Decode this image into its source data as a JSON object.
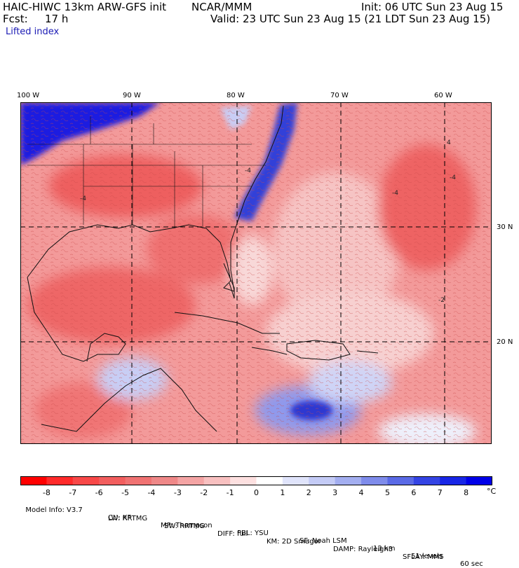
{
  "header": {
    "model": "HAIC-HIWC 13km ARW-GFS init",
    "org": "NCAR/MMM",
    "init": "Init: 06 UTC Sun 23 Aug 15",
    "fcst_label": "Fcst:",
    "fcst_value": "17 h",
    "valid": "Valid: 23 UTC Sun 23 Aug 15 (21 LDT Sun 23 Aug 15)",
    "field": "Lifted index"
  },
  "map": {
    "lon_labels": [
      "100 W",
      "90 W",
      "80 W",
      "70 W",
      "60 W"
    ],
    "lat_labels": [
      "30 N",
      "20 N"
    ],
    "contour_labels": [
      "-4",
      "-4",
      "-2",
      "-4",
      "4",
      "-4"
    ]
  },
  "colorbar": {
    "ticks": [
      "-8",
      "-7",
      "-6",
      "-5",
      "-4",
      "-3",
      "-2",
      "-1",
      "0",
      "1",
      "2",
      "3",
      "4",
      "5",
      "6",
      "7",
      "8"
    ],
    "unit": "°C",
    "colors": [
      "#ff0000",
      "#ff2a2a",
      "#f84848",
      "#f25e5e",
      "#f07272",
      "#ef8888",
      "#f4a4a4",
      "#f8c0c0",
      "#fde0e0",
      "#ffffff",
      "#e0e4fb",
      "#c4cbf6",
      "#a3aef0",
      "#7f8ceb",
      "#5a6ae6",
      "#3444e4",
      "#1826e6",
      "#0000e8"
    ]
  },
  "footer": {
    "line1": [
      "Model Info: V3.7",
      "CU: KF",
      "MP: Thompson",
      "PBL: YSU",
      "SF: Noah LSM",
      "13 km",
      "51 levels",
      "60 sec"
    ],
    "line2": [
      "LW: RRTMG",
      "SW: RRTMG",
      "DIFF: full",
      "KM: 2D Smagor",
      "DAMP: Rayleigh3",
      "SFLAY: MM5"
    ]
  }
}
